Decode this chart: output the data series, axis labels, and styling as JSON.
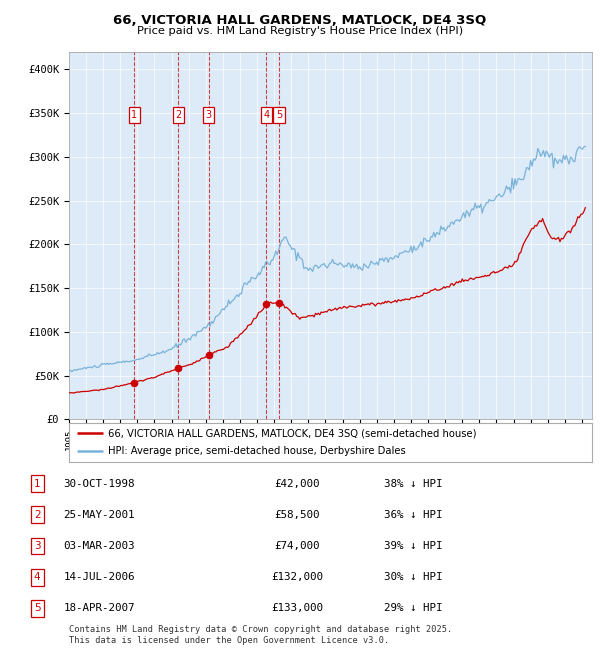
{
  "title_line1": "66, VICTORIA HALL GARDENS, MATLOCK, DE4 3SQ",
  "title_line2": "Price paid vs. HM Land Registry's House Price Index (HPI)",
  "hpi_color": "#7ab3d9",
  "price_color": "#cc0000",
  "plot_bg_color": "#ddeaf7",
  "ylim": [
    0,
    420000
  ],
  "yticks": [
    0,
    50000,
    100000,
    150000,
    200000,
    250000,
    300000,
    350000,
    400000
  ],
  "ytick_labels": [
    "£0",
    "£50K",
    "£100K",
    "£150K",
    "£200K",
    "£250K",
    "£300K",
    "£350K",
    "£400K"
  ],
  "xlim_start": 1995,
  "xlim_end": 2025.6,
  "sales": [
    {
      "num": 1,
      "date_str": "30-OCT-1998",
      "date_x": 1998.83,
      "price": 42000,
      "pct": "38%"
    },
    {
      "num": 2,
      "date_str": "25-MAY-2001",
      "date_x": 2001.4,
      "price": 58500,
      "pct": "36%"
    },
    {
      "num": 3,
      "date_str": "03-MAR-2003",
      "date_x": 2003.17,
      "price": 74000,
      "pct": "39%"
    },
    {
      "num": 4,
      "date_str": "14-JUL-2006",
      "date_x": 2006.54,
      "price": 132000,
      "pct": "30%"
    },
    {
      "num": 5,
      "date_str": "18-APR-2007",
      "date_x": 2007.29,
      "price": 133000,
      "pct": "29%"
    }
  ],
  "legend_line1": "66, VICTORIA HALL GARDENS, MATLOCK, DE4 3SQ (semi-detached house)",
  "legend_line2": "HPI: Average price, semi-detached house, Derbyshire Dales",
  "footer": "Contains HM Land Registry data © Crown copyright and database right 2025.\nThis data is licensed under the Open Government Licence v3.0.",
  "hpi_anchors": [
    [
      1995.0,
      55000
    ],
    [
      1997.0,
      62000
    ],
    [
      1999.0,
      68000
    ],
    [
      2001.0,
      80000
    ],
    [
      2003.0,
      105000
    ],
    [
      2005.0,
      145000
    ],
    [
      2007.0,
      185000
    ],
    [
      2007.6,
      207000
    ],
    [
      2009.0,
      172000
    ],
    [
      2010.5,
      178000
    ],
    [
      2012.0,
      174000
    ],
    [
      2014.0,
      185000
    ],
    [
      2016.0,
      205000
    ],
    [
      2018.0,
      232000
    ],
    [
      2020.0,
      252000
    ],
    [
      2021.5,
      275000
    ],
    [
      2022.5,
      308000
    ],
    [
      2023.5,
      293000
    ],
    [
      2024.5,
      300000
    ],
    [
      2025.2,
      312000
    ]
  ],
  "price_anchors": [
    [
      1995.0,
      30000
    ],
    [
      1997.0,
      34000
    ],
    [
      1998.83,
      42000
    ],
    [
      2000.0,
      48000
    ],
    [
      2001.4,
      58500
    ],
    [
      2002.2,
      63000
    ],
    [
      2003.17,
      74000
    ],
    [
      2004.2,
      82000
    ],
    [
      2005.2,
      100000
    ],
    [
      2006.0,
      118000
    ],
    [
      2006.54,
      132000
    ],
    [
      2007.29,
      133000
    ],
    [
      2007.8,
      126000
    ],
    [
      2008.5,
      115000
    ],
    [
      2009.5,
      120000
    ],
    [
      2011.0,
      128000
    ],
    [
      2013.0,
      132000
    ],
    [
      2015.0,
      138000
    ],
    [
      2016.5,
      148000
    ],
    [
      2018.0,
      158000
    ],
    [
      2019.5,
      165000
    ],
    [
      2021.0,
      175000
    ],
    [
      2022.0,
      215000
    ],
    [
      2022.7,
      228000
    ],
    [
      2023.2,
      208000
    ],
    [
      2023.8,
      205000
    ],
    [
      2024.5,
      220000
    ],
    [
      2025.2,
      242000
    ]
  ]
}
